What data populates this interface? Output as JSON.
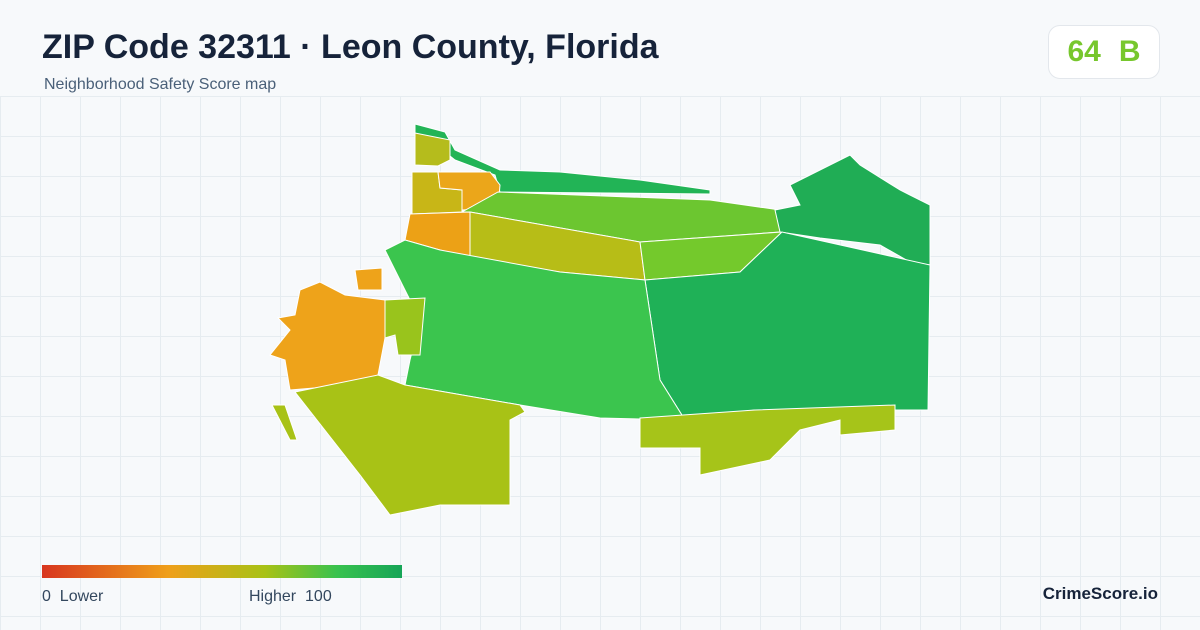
{
  "header": {
    "title": "ZIP Code 32311 · Leon County, Florida",
    "subtitle": "Neighborhood Safety Score map"
  },
  "score": {
    "value": 64,
    "grade": "B"
  },
  "legend": {
    "min": 0,
    "min_label": "Lower",
    "max_label": "Higher",
    "max": 100
  },
  "footer": {
    "brand": "CrimeScore.io"
  }
}
